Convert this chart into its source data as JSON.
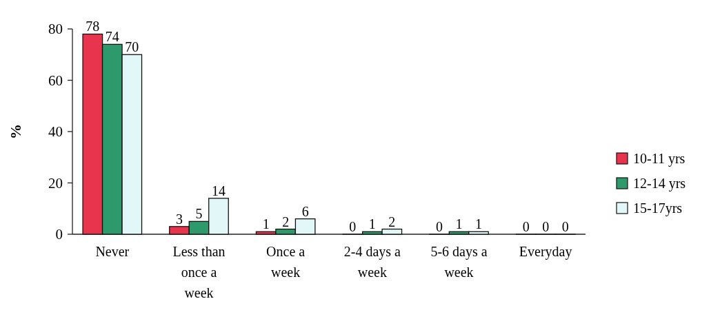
{
  "chart_data": {
    "type": "bar",
    "ylabel": "%",
    "categories": [
      "Never",
      "Less than once a week",
      "Once a week",
      "2-4 days a week",
      "5-6 days a week",
      "Everyday"
    ],
    "series": [
      {
        "name": "10-11 yrs",
        "color": "#e8344c",
        "values": [
          78,
          3,
          1,
          0,
          0,
          0
        ]
      },
      {
        "name": "12-14 yrs",
        "color": "#2e9a6c",
        "values": [
          74,
          5,
          2,
          1,
          1,
          0
        ]
      },
      {
        "name": "15-17yrs",
        "color": "#e2f8f8",
        "values": [
          70,
          14,
          6,
          2,
          1,
          0
        ]
      }
    ],
    "ylim": [
      0,
      80
    ],
    "yticks": [
      0,
      20,
      40,
      60,
      80
    ],
    "data_labels": true,
    "legend": "right"
  }
}
